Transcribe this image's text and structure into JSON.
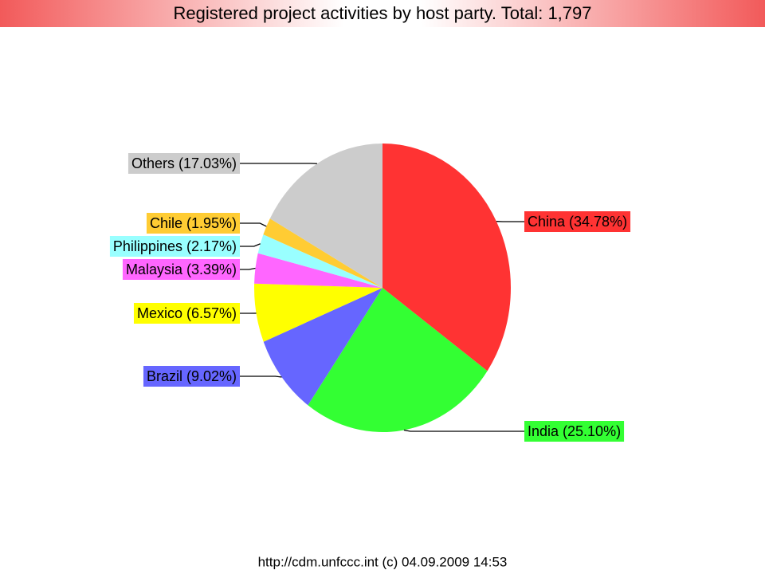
{
  "chart_data": {
    "type": "pie",
    "title": "Registered project activities by host party. Total: 1,797",
    "footer": "http://cdm.unfccc.int (c) 04.09.2009 14:53",
    "categories": [
      "China (34.78%)",
      "India (25.10%)",
      "Brazil (9.02%)",
      "Mexico (6.57%)",
      "Malaysia (3.39%)",
      "Philippines (2.17%)",
      "Chile (1.95%)",
      "Others (17.03%)"
    ],
    "values": [
      34.78,
      25.1,
      9.02,
      6.57,
      3.39,
      2.17,
      1.95,
      17.03
    ],
    "colors": [
      "#ff3333",
      "#33ff33",
      "#6666ff",
      "#ffff00",
      "#ff66ff",
      "#99ffff",
      "#ffcc33",
      "#cccccc"
    ]
  }
}
